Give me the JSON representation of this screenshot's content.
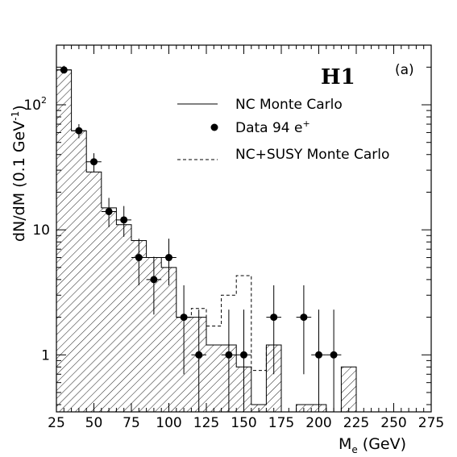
{
  "chart_data": {
    "type": "histogram",
    "experiment_label": "H1",
    "panel_label": "(a)",
    "xlabel": "M",
    "xlabel_subscript": "e",
    "xlabel_unit": "(GeV)",
    "ylabel": "dN/dM  (0.1 GeV",
    "ylabel_superscript": "-1",
    "ylabel_close": ")",
    "xlim": [
      25,
      275
    ],
    "ylim": [
      0.35,
      300
    ],
    "yscale": "log",
    "xticks": [
      25,
      50,
      75,
      100,
      125,
      150,
      175,
      200,
      225,
      250,
      275
    ],
    "yticks": [
      {
        "value": 1,
        "label": "1"
      },
      {
        "value": 10,
        "label": "10"
      },
      {
        "value": 100,
        "label": "10",
        "sup": "2"
      }
    ],
    "legend": {
      "position": "top-right",
      "entries": [
        {
          "label": "NC Monte Carlo",
          "style": "solid-line"
        },
        {
          "label": "Data 94 e",
          "sup": "+",
          "style": "marker"
        },
        {
          "label": "NC+SUSY Monte Carlo",
          "style": "dashed-line"
        }
      ]
    },
    "series": [
      {
        "name": "NC Monte Carlo",
        "style": "hatched-histogram",
        "bin_width": 10,
        "bins": [
          {
            "x0": 25,
            "x1": 35,
            "y": 190
          },
          {
            "x0": 35,
            "x1": 45,
            "y": 62
          },
          {
            "x0": 45,
            "x1": 55,
            "y": 29
          },
          {
            "x0": 55,
            "x1": 65,
            "y": 15
          },
          {
            "x0": 65,
            "x1": 75,
            "y": 11
          },
          {
            "x0": 75,
            "x1": 85,
            "y": 8.2
          },
          {
            "x0": 85,
            "x1": 95,
            "y": 6
          },
          {
            "x0": 95,
            "x1": 105,
            "y": 5
          },
          {
            "x0": 105,
            "x1": 115,
            "y": 2
          },
          {
            "x0": 115,
            "x1": 125,
            "y": 2
          },
          {
            "x0": 125,
            "x1": 135,
            "y": 1.2
          },
          {
            "x0": 135,
            "x1": 145,
            "y": 1.2
          },
          {
            "x0": 145,
            "x1": 155,
            "y": 0.8
          },
          {
            "x0": 155,
            "x1": 165,
            "y": 0.4
          },
          {
            "x0": 165,
            "x1": 175,
            "y": 1.2
          },
          {
            "x0": 185,
            "x1": 205,
            "y": 0.4
          },
          {
            "x0": 215,
            "x1": 225,
            "y": 0.8
          }
        ]
      },
      {
        "name": "NC+SUSY Monte Carlo",
        "style": "dashed-histogram",
        "bins": [
          {
            "x0": 105,
            "x1": 115,
            "y": 2
          },
          {
            "x0": 115,
            "x1": 125,
            "y": 2.35
          },
          {
            "x0": 125,
            "x1": 135,
            "y": 1.7
          },
          {
            "x0": 135,
            "x1": 145,
            "y": 3
          },
          {
            "x0": 145,
            "x1": 155,
            "y": 4.3
          },
          {
            "x0": 155,
            "x1": 165,
            "y": 0.75
          },
          {
            "x0": 165,
            "x1": 175,
            "y": 1.2
          }
        ]
      },
      {
        "name": "Data 94 e+",
        "style": "points-with-errors",
        "points": [
          {
            "x": 30,
            "y": 190,
            "lo": 178,
            "hi": 205
          },
          {
            "x": 40,
            "y": 62,
            "lo": 54,
            "hi": 70
          },
          {
            "x": 50,
            "y": 35,
            "lo": 29,
            "hi": 41
          },
          {
            "x": 60,
            "y": 14,
            "lo": 10.5,
            "hi": 18
          },
          {
            "x": 70,
            "y": 12,
            "lo": 8.8,
            "hi": 15.5
          },
          {
            "x": 80,
            "y": 6,
            "lo": 3.6,
            "hi": 8.5
          },
          {
            "x": 90,
            "y": 4,
            "lo": 2.1,
            "hi": 6.1
          },
          {
            "x": 100,
            "y": 6,
            "lo": 3.6,
            "hi": 8.5
          },
          {
            "x": 110,
            "y": 2,
            "lo": 0.7,
            "hi": 3.6
          },
          {
            "x": 120,
            "y": 1,
            "lo": 0.35,
            "hi": 2.3
          },
          {
            "x": 140,
            "y": 1,
            "lo": 0.35,
            "hi": 2.3
          },
          {
            "x": 150,
            "y": 1,
            "lo": 0.35,
            "hi": 2.3
          },
          {
            "x": 170,
            "y": 2,
            "lo": 0.7,
            "hi": 3.6
          },
          {
            "x": 190,
            "y": 2,
            "lo": 0.7,
            "hi": 3.6
          },
          {
            "x": 200,
            "y": 1,
            "lo": 0.35,
            "hi": 2.3
          },
          {
            "x": 210,
            "y": 1,
            "lo": 0.35,
            "hi": 2.3
          }
        ]
      }
    ]
  }
}
